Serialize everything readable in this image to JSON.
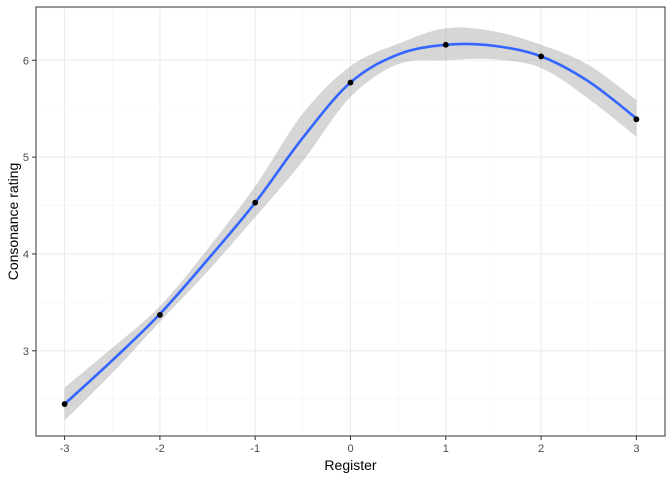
{
  "chart_data": {
    "type": "scatter",
    "title": "",
    "xlabel": "Register",
    "ylabel": "Consonance rating",
    "xlim": [
      -3.3,
      3.3
    ],
    "ylim": [
      2.12,
      6.55
    ],
    "x_ticks": [
      -3,
      -2,
      -1,
      0,
      1,
      2,
      3
    ],
    "x_tick_labels": [
      "-3",
      "-2",
      "-1",
      "0",
      "1",
      "2",
      "3"
    ],
    "y_ticks": [
      3,
      4,
      5,
      6
    ],
    "y_tick_labels": [
      "3",
      "4",
      "5",
      "6"
    ],
    "grid": true,
    "legend": "none",
    "series": [
      {
        "kind": "points",
        "x": [
          -3,
          -2,
          -1,
          0,
          1,
          2,
          3
        ],
        "y": [
          2.45,
          3.37,
          4.53,
          5.77,
          6.16,
          6.04,
          5.39
        ]
      },
      {
        "kind": "smooth",
        "x": [
          -3.0,
          -2.5,
          -2.0,
          -1.5,
          -1.0,
          -0.5,
          0.0,
          0.5,
          1.0,
          1.5,
          2.0,
          2.5,
          3.0
        ],
        "y": [
          2.45,
          2.9,
          3.38,
          3.94,
          4.53,
          5.2,
          5.77,
          6.06,
          6.16,
          6.15,
          6.04,
          5.78,
          5.4
        ],
        "ymin": [
          2.28,
          2.77,
          3.3,
          3.82,
          4.38,
          4.96,
          5.62,
          5.96,
          6.0,
          6.01,
          5.92,
          5.6,
          5.21
        ],
        "ymax": [
          2.62,
          3.03,
          3.46,
          4.05,
          4.7,
          5.45,
          5.94,
          6.17,
          6.33,
          6.3,
          6.16,
          5.95,
          5.59
        ]
      }
    ],
    "colors": {
      "points": "#000000",
      "line": "#3366FF",
      "ribbon": "#999999",
      "grid_major": "#ebebeb",
      "grid_minor": "#f5f5f5",
      "panel_border": "#333333"
    }
  }
}
